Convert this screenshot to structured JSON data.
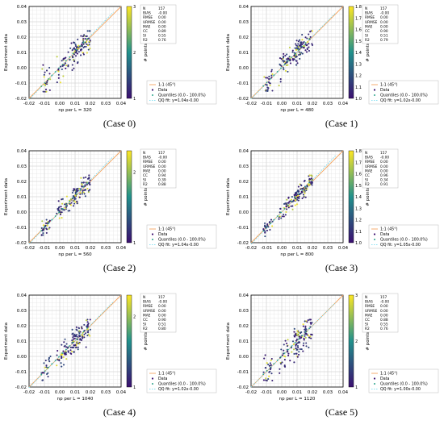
{
  "shared": {
    "ylabel": "Experiment data",
    "xticks": [
      "-0.02",
      "-0.01",
      "0.00",
      "0.01",
      "0.02",
      "0.03",
      "0.04"
    ],
    "yticks": [
      "-0.02",
      "-0.01",
      "0.00",
      "0.01",
      "0.02",
      "0.03",
      "0.04"
    ],
    "cbar_label": "# points",
    "stats_keys": [
      "N",
      "BIAS",
      "RMSE",
      "URMSE",
      "MAE",
      "CC",
      "SI",
      "R2"
    ],
    "legend": [
      "1:1 (45°)",
      "Data",
      "Quantiles (0.0 - 100.0%)",
      "QQ fit: "
    ],
    "colors": {
      "line": "#f4a460",
      "quantile": "#2ca58d",
      "qqfit": "#66d9ef",
      "cmap_low": "#3b0f70",
      "cmap_high": "#fde725"
    }
  },
  "chart_data": [
    {
      "type": "scatter",
      "caption": "(Case 0)",
      "xlabel": "np per L = 320",
      "xlim": [
        -0.02,
        0.04
      ],
      "ylim": [
        -0.02,
        0.04
      ],
      "cbar_ticks": [
        "1",
        "2",
        "3"
      ],
      "cbar_range": [
        1,
        3
      ],
      "stats_vals": [
        "157",
        "-0.00",
        "0.00",
        "0.00",
        "0.00",
        "0.89",
        "0.55",
        "0.76"
      ],
      "qq_fit": "y=1.04x-0.00",
      "qq_slope": 1.04,
      "seed": 11,
      "spread": 0.0045
    },
    {
      "type": "scatter",
      "caption": "(Case 1)",
      "xlabel": "np per L = 480",
      "xlim": [
        -0.02,
        0.04
      ],
      "ylim": [
        -0.02,
        0.04
      ],
      "cbar_ticks": [
        "1.0",
        "1.1",
        "1.2",
        "1.3",
        "1.4",
        "1.5",
        "1.6",
        "1.7",
        "1.8"
      ],
      "cbar_range": [
        1.0,
        1.8
      ],
      "stats_vals": [
        "157",
        "-0.00",
        "0.00",
        "0.00",
        "0.00",
        "0.90",
        "0.51",
        "0.79"
      ],
      "qq_fit": "y=1.02x-0.00",
      "qq_slope": 1.02,
      "seed": 23,
      "spread": 0.0042
    },
    {
      "type": "scatter",
      "caption": "(Case 2)",
      "xlabel": "np per L = 560",
      "xlim": [
        -0.02,
        0.04
      ],
      "ylim": [
        -0.02,
        0.04
      ],
      "cbar_ticks": [
        "1",
        "2"
      ],
      "cbar_range": [
        1,
        2.3
      ],
      "stats_vals": [
        "157",
        "-0.00",
        "0.00",
        "0.00",
        "0.00",
        "0.94",
        "0.39",
        "0.88"
      ],
      "qq_fit": "y=1.04x-0.00",
      "qq_slope": 1.04,
      "seed": 37,
      "spread": 0.003
    },
    {
      "type": "scatter",
      "caption": "(Case 3)",
      "xlabel": "np per L = 800",
      "xlim": [
        -0.02,
        0.04
      ],
      "ylim": [
        -0.02,
        0.04
      ],
      "cbar_ticks": [
        "1.0",
        "1.1",
        "1.2",
        "1.3",
        "1.4",
        "1.5",
        "1.6",
        "1.7",
        "1.8"
      ],
      "cbar_range": [
        1.0,
        1.8
      ],
      "stats_vals": [
        "157",
        "-0.00",
        "0.00",
        "0.00",
        "0.00",
        "0.96",
        "0.34",
        "0.91"
      ],
      "qq_fit": "y=1.05x-0.00",
      "qq_slope": 1.05,
      "seed": 41,
      "spread": 0.0026
    },
    {
      "type": "scatter",
      "caption": "(Case 4)",
      "xlabel": "np per L = 1040",
      "xlim": [
        -0.02,
        0.04
      ],
      "ylim": [
        -0.02,
        0.04
      ],
      "cbar_ticks": [
        "1",
        "2"
      ],
      "cbar_range": [
        1,
        2.3
      ],
      "stats_vals": [
        "157",
        "-0.00",
        "0.00",
        "0.00",
        "0.00",
        "0.90",
        "0.51",
        "0.80"
      ],
      "qq_fit": "y=1.02x-0.00",
      "qq_slope": 1.02,
      "seed": 53,
      "spread": 0.0042
    },
    {
      "type": "scatter",
      "caption": "(Case 5)",
      "xlabel": "np per L = 1120",
      "xlim": [
        -0.02,
        0.04
      ],
      "ylim": [
        -0.02,
        0.04
      ],
      "cbar_ticks": [
        "1",
        "2",
        "3"
      ],
      "cbar_range": [
        1,
        3
      ],
      "stats_vals": [
        "157",
        "-0.00",
        "0.00",
        "0.00",
        "0.00",
        "0.88",
        "0.55",
        "0.76"
      ],
      "qq_fit": "y=1.00x-0.00",
      "qq_slope": 1.0,
      "seed": 67,
      "spread": 0.0045
    }
  ]
}
